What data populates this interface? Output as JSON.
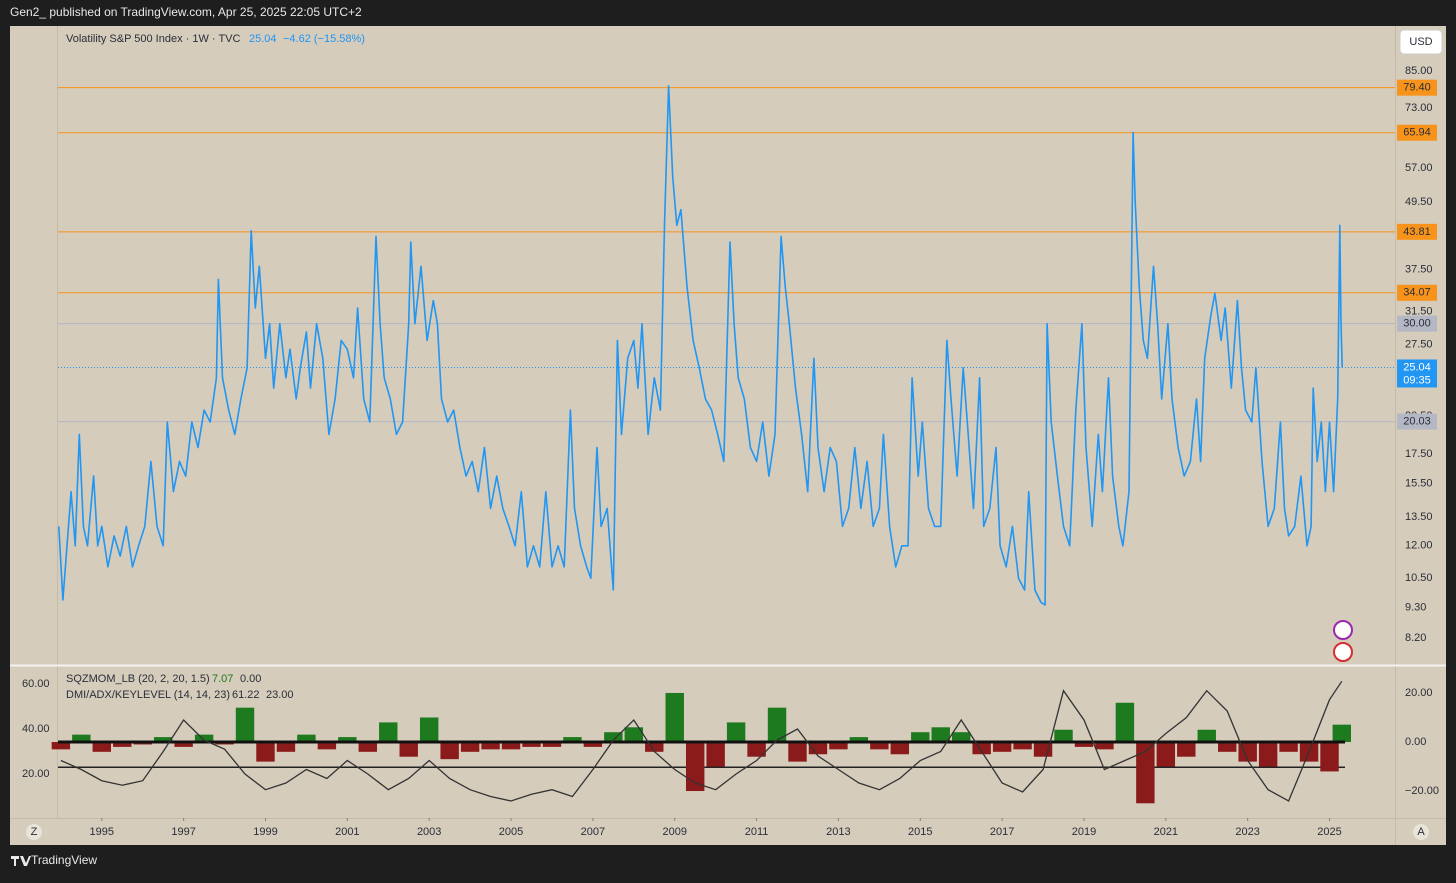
{
  "header": "Gen2_ published on TradingView.com, Apr 25, 2025 22:05 UTC+2",
  "footer": "TradingView",
  "buttons": [
    "Z",
    "A"
  ],
  "chart_data": [
    {
      "type": "line",
      "title": "Volatility S&P 500 Index · 1W · TVC",
      "legend_value": "25.04",
      "legend_change": "−4.62 (−15.58%)",
      "currency": "USD",
      "log_scale": true,
      "grid": false,
      "xlim": [
        1993.93,
        2026.6
      ],
      "ylim": [
        7.37,
        102.4
      ],
      "xticks": [
        1995,
        1997,
        1999,
        2001,
        2003,
        2005,
        2007,
        2009,
        2011,
        2013,
        2015,
        2017,
        2019,
        2021,
        2023,
        2025
      ],
      "yticks": [
        {
          "value": 8.2,
          "label": "8.20"
        },
        {
          "value": 9.3,
          "label": "9.30"
        },
        {
          "value": 10.5,
          "label": "10.50"
        },
        {
          "value": 12,
          "label": "12.00"
        },
        {
          "value": 13.5,
          "label": "13.50"
        },
        {
          "value": 15.5,
          "label": "15.50"
        },
        {
          "value": 17.5,
          "label": "17.50"
        },
        {
          "value": 20.5,
          "label": "20.50"
        },
        {
          "value": 27.5,
          "label": "27.50"
        },
        {
          "value": 31.5,
          "label": "31.50"
        },
        {
          "value": 37.5,
          "label": "37.50"
        },
        {
          "value": 49.5,
          "label": "49.50"
        },
        {
          "value": 57,
          "label": "57.00"
        },
        {
          "value": 73,
          "label": "73.00"
        },
        {
          "value": 85,
          "label": "85.00"
        }
      ],
      "levels": [
        {
          "value": 79.4,
          "label": "79.40",
          "color": "#f7931a"
        },
        {
          "value": 65.94,
          "label": "65.94",
          "color": "#f7931a"
        },
        {
          "value": 43.81,
          "label": "43.81",
          "color": "#f7931a"
        },
        {
          "value": 34.07,
          "label": "34.07",
          "color": "#f7931a"
        },
        {
          "value": 30,
          "label": "30.00",
          "color": "#b4b8c4"
        },
        {
          "value": 20.03,
          "label": "20.03",
          "color": "#b4b8c4"
        }
      ],
      "last_price": {
        "value": 25.04,
        "label": "25.04"
      },
      "countdown": "09:35",
      "color": "#2196f3",
      "x": [
        1993.95,
        1994.05,
        1994.15,
        1994.25,
        1994.35,
        1994.45,
        1994.55,
        1994.65,
        1994.8,
        1994.9,
        1995.0,
        1995.15,
        1995.3,
        1995.45,
        1995.6,
        1995.75,
        1995.9,
        1996.05,
        1996.2,
        1996.35,
        1996.5,
        1996.6,
        1996.75,
        1996.9,
        1997.05,
        1997.2,
        1997.35,
        1997.5,
        1997.65,
        1997.8,
        1997.85,
        1997.95,
        1998.1,
        1998.25,
        1998.4,
        1998.55,
        1998.65,
        1998.75,
        1998.85,
        1999.0,
        1999.1,
        1999.2,
        1999.35,
        1999.5,
        1999.6,
        1999.75,
        1999.85,
        2000.0,
        2000.1,
        2000.25,
        2000.4,
        2000.55,
        2000.7,
        2000.85,
        2001.0,
        2001.15,
        2001.25,
        2001.4,
        2001.55,
        2001.7,
        2001.8,
        2001.9,
        2002.05,
        2002.2,
        2002.35,
        2002.5,
        2002.55,
        2002.65,
        2002.8,
        2002.95,
        2003.1,
        2003.2,
        2003.3,
        2003.45,
        2003.6,
        2003.75,
        2003.9,
        2004.05,
        2004.2,
        2004.35,
        2004.5,
        2004.65,
        2004.8,
        2004.95,
        2005.1,
        2005.25,
        2005.4,
        2005.55,
        2005.7,
        2005.85,
        2006.0,
        2006.15,
        2006.3,
        2006.45,
        2006.55,
        2006.7,
        2006.85,
        2006.95,
        2007.1,
        2007.2,
        2007.35,
        2007.5,
        2007.6,
        2007.7,
        2007.85,
        2008.0,
        2008.1,
        2008.2,
        2008.35,
        2008.5,
        2008.65,
        2008.75,
        2008.85,
        2008.95,
        2009.05,
        2009.15,
        2009.3,
        2009.45,
        2009.6,
        2009.75,
        2009.9,
        2010.05,
        2010.2,
        2010.35,
        2010.45,
        2010.55,
        2010.7,
        2010.85,
        2011.0,
        2011.15,
        2011.3,
        2011.45,
        2011.6,
        2011.7,
        2011.8,
        2011.95,
        2012.1,
        2012.25,
        2012.4,
        2012.5,
        2012.65,
        2012.8,
        2012.95,
        2013.1,
        2013.25,
        2013.4,
        2013.55,
        2013.7,
        2013.85,
        2014.0,
        2014.1,
        2014.25,
        2014.4,
        2014.55,
        2014.7,
        2014.8,
        2014.95,
        2015.05,
        2015.2,
        2015.35,
        2015.5,
        2015.65,
        2015.75,
        2015.9,
        2016.05,
        2016.15,
        2016.3,
        2016.45,
        2016.55,
        2016.7,
        2016.85,
        2016.95,
        2017.1,
        2017.25,
        2017.4,
        2017.55,
        2017.65,
        2017.8,
        2017.95,
        2018.05,
        2018.1,
        2018.2,
        2018.35,
        2018.5,
        2018.65,
        2018.8,
        2018.95,
        2019.05,
        2019.2,
        2019.35,
        2019.45,
        2019.6,
        2019.7,
        2019.85,
        2019.95,
        2020.1,
        2020.2,
        2020.25,
        2020.35,
        2020.45,
        2020.55,
        2020.7,
        2020.8,
        2020.9,
        2021.05,
        2021.15,
        2021.3,
        2021.45,
        2021.6,
        2021.75,
        2021.85,
        2021.95,
        2022.1,
        2022.2,
        2022.35,
        2022.45,
        2022.6,
        2022.75,
        2022.85,
        2022.95,
        2023.1,
        2023.2,
        2023.35,
        2023.5,
        2023.65,
        2023.8,
        2023.9,
        2024.0,
        2024.15,
        2024.3,
        2024.45,
        2024.55,
        2024.6,
        2024.7,
        2024.8,
        2024.9,
        2025.0,
        2025.1,
        2025.2,
        2025.25,
        2025.28,
        2025.31
      ],
      "values": [
        13,
        9.6,
        12,
        15,
        12,
        19,
        13,
        12,
        16,
        12,
        13,
        11,
        12.5,
        11.5,
        13,
        11,
        12,
        13,
        17,
        13,
        12,
        20,
        15,
        17,
        16,
        20,
        18,
        21,
        20,
        24,
        36,
        24,
        21,
        19,
        22,
        25,
        44,
        32,
        38,
        26,
        30,
        23,
        30,
        24,
        27,
        22,
        25,
        29,
        23,
        30,
        26,
        19,
        22,
        28,
        27,
        24,
        32,
        22,
        20,
        43,
        30,
        24,
        22,
        19,
        20,
        30,
        42,
        30,
        38,
        28,
        33,
        30,
        22,
        20,
        21,
        18,
        16,
        17,
        15,
        18,
        14,
        16,
        14,
        13,
        12,
        15,
        11,
        12,
        11,
        15,
        11,
        12,
        11,
        21,
        14,
        12,
        11,
        10.5,
        18,
        13,
        14,
        10,
        28,
        19,
        26,
        28,
        23,
        30,
        19,
        24,
        21,
        45,
        80,
        55,
        45,
        48,
        35,
        28,
        25,
        22,
        21,
        19,
        17,
        42,
        30,
        24,
        22,
        18,
        17,
        20,
        16,
        19,
        43,
        35,
        30,
        23,
        19,
        15,
        26,
        18,
        15,
        18,
        17,
        13,
        14,
        18,
        14,
        17,
        13,
        14,
        19,
        13,
        11,
        12,
        12,
        24,
        16,
        20,
        14,
        13,
        13,
        28,
        22,
        16,
        25,
        20,
        14,
        24,
        13,
        14,
        18,
        12,
        11,
        13,
        10.5,
        10,
        15,
        10,
        9.5,
        9.4,
        30,
        20,
        16,
        13,
        12,
        21,
        30,
        18,
        13,
        19,
        15,
        24,
        16,
        13,
        12,
        15,
        66,
        50,
        35,
        28,
        26,
        38,
        30,
        22,
        30,
        22,
        18,
        16,
        17,
        22,
        17,
        26,
        31,
        34,
        28,
        32,
        23,
        33,
        25,
        21,
        20,
        25,
        17,
        13,
        14,
        20,
        14,
        12.5,
        13,
        16,
        12,
        13,
        23,
        17,
        20,
        15,
        20,
        15,
        22,
        45,
        30,
        25.04
      ]
    },
    {
      "type": "indicator",
      "ylim": [
        0.44,
        68
      ],
      "yticks": [
        {
          "value": 60,
          "label": "60.00"
        },
        {
          "value": 40,
          "label": "40.00"
        },
        {
          "value": 20,
          "label": "20.00"
        }
      ],
      "y2lim": [
        -31,
        31
      ],
      "y2ticks": [
        {
          "value": 20,
          "label": "20.00"
        },
        {
          "value": 0,
          "label": "0.00"
        },
        {
          "value": -20,
          "label": "−20.00"
        }
      ],
      "key_level": 23,
      "series": [
        {
          "name": "SQZMOM_LB (20, 2, 20, 1.5)",
          "legend_values": [
            "7.07",
            "0.00"
          ],
          "type": "bar",
          "axis": "y2",
          "positive_color": "#1e7a1e",
          "negative_color": "#8b1a1a",
          "x": [
            1994,
            1994.5,
            1995,
            1995.5,
            1996,
            1996.5,
            1997,
            1997.5,
            1998,
            1998.5,
            1999,
            1999.5,
            2000,
            2000.5,
            2001,
            2001.5,
            2002,
            2002.5,
            2003,
            2003.5,
            2004,
            2004.5,
            2005,
            2005.5,
            2006,
            2006.5,
            2007,
            2007.5,
            2008,
            2008.5,
            2009,
            2009.5,
            2010,
            2010.5,
            2011,
            2011.5,
            2012,
            2012.5,
            2013,
            2013.5,
            2014,
            2014.5,
            2015,
            2015.5,
            2016,
            2016.5,
            2017,
            2017.5,
            2018,
            2018.5,
            2019,
            2019.5,
            2020,
            2020.5,
            2021,
            2021.5,
            2022,
            2022.5,
            2023,
            2023.5,
            2024,
            2024.5,
            2025,
            2025.3
          ],
          "values": [
            -3,
            3,
            -4,
            -2,
            -1,
            2,
            -2,
            3,
            -1,
            14,
            -8,
            -4,
            3,
            -3,
            2,
            -4,
            8,
            -6,
            10,
            -7,
            -4,
            -3,
            -3,
            -2,
            -2,
            2,
            -2,
            4,
            6,
            -4,
            20,
            -20,
            -10,
            8,
            -6,
            14,
            -8,
            -5,
            -3,
            2,
            -3,
            -5,
            4,
            6,
            4,
            -5,
            -4,
            -3,
            -6,
            5,
            -2,
            -3,
            16,
            -25,
            -10,
            -6,
            5,
            -4,
            -8,
            -10,
            -4,
            -8,
            -12,
            7.07
          ]
        },
        {
          "name": "DMI/ADX/KEYLEVEL (14, 14, 23)",
          "legend_values": [
            "61.22",
            "23.00"
          ],
          "type": "line",
          "color": "#333333",
          "x": [
            1994,
            1994.5,
            1995,
            1995.5,
            1996,
            1996.5,
            1997,
            1997.5,
            1998,
            1998.5,
            1999,
            1999.5,
            2000,
            2000.5,
            2001,
            2001.5,
            2002,
            2002.5,
            2003,
            2003.5,
            2004,
            2004.5,
            2005,
            2005.5,
            2006,
            2006.5,
            2007,
            2007.5,
            2008,
            2008.5,
            2009,
            2009.5,
            2010,
            2010.5,
            2011,
            2011.5,
            2012,
            2012.5,
            2013,
            2013.5,
            2014,
            2014.5,
            2015,
            2015.5,
            2016,
            2016.5,
            2017,
            2017.5,
            2018,
            2018.5,
            2019,
            2019.5,
            2020,
            2020.5,
            2021,
            2021.5,
            2022,
            2022.5,
            2023,
            2023.5,
            2024,
            2024.5,
            2025,
            2025.3
          ],
          "values": [
            26,
            22,
            17,
            15,
            17,
            30,
            44,
            35,
            31,
            20,
            13,
            16,
            22,
            18,
            26,
            20,
            13,
            18,
            26,
            18,
            13,
            10,
            8,
            11,
            13,
            10,
            22,
            35,
            44,
            30,
            22,
            16,
            13,
            20,
            26,
            35,
            40,
            28,
            22,
            16,
            13,
            18,
            26,
            30,
            44,
            30,
            16,
            12,
            22,
            57,
            44,
            22,
            26,
            30,
            38,
            45,
            57,
            48,
            26,
            13,
            8,
            30,
            53,
            61.22
          ]
        }
      ]
    }
  ]
}
